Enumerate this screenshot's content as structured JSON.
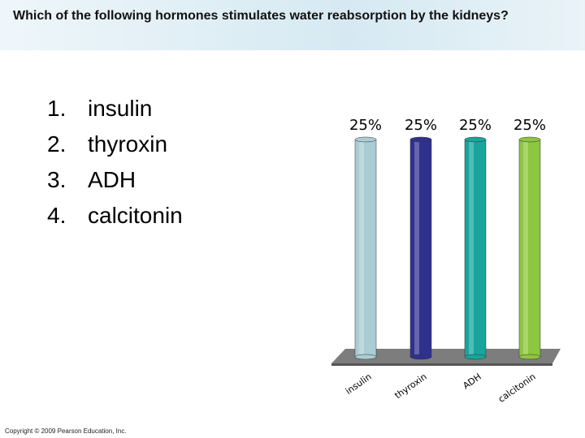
{
  "question": "Which of the following hormones stimulates water reabsorption by the kidneys?",
  "options": [
    {
      "number": "1.",
      "text": "insulin"
    },
    {
      "number": "2.",
      "text": "thyroxin"
    },
    {
      "number": "3.",
      "text": "ADH"
    },
    {
      "number": "4.",
      "text": "calcitonin"
    }
  ],
  "copyright": "Copyright © 2009 Pearson Education, Inc.",
  "chart_data": {
    "type": "bar",
    "categories": [
      "insulin",
      "thyroxin",
      "ADH",
      "calcitonin"
    ],
    "values": [
      25,
      25,
      25,
      25
    ],
    "value_labels": [
      "25%",
      "25%",
      "25%",
      "25%"
    ],
    "colors": [
      "#a9cdd3",
      "#2f318f",
      "#17a59c",
      "#8dc63f"
    ]
  }
}
